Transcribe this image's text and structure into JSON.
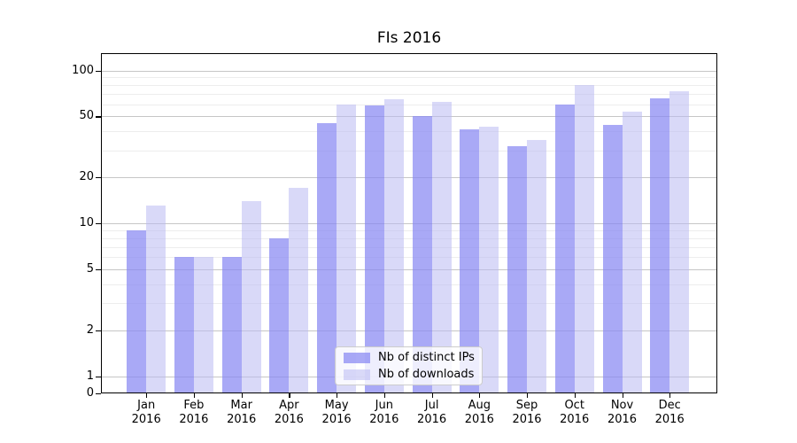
{
  "window": {
    "title": "FIs 2016"
  },
  "chart_data": {
    "type": "bar",
    "title": "FIs 2016",
    "months": [
      "Jan",
      "Feb",
      "Mar",
      "Apr",
      "May",
      "Jun",
      "Jul",
      "Aug",
      "Sep",
      "Oct",
      "Nov",
      "Dec"
    ],
    "year": "2016",
    "series": [
      {
        "name": "Nb of distinct IPs",
        "values": [
          9,
          6,
          6,
          8,
          45,
          59,
          50,
          41,
          32,
          60,
          44,
          66
        ],
        "color": "#a9a9f4",
        "color_rgba": "rgba(136,136,242,0.72)"
      },
      {
        "name": "Nb of downloads",
        "values": [
          13,
          6,
          14,
          17,
          60,
          65,
          62,
          43,
          35,
          80,
          54,
          73
        ],
        "color": "#d9d9f8",
        "color_rgba": "rgba(186,186,243,0.55)"
      }
    ],
    "yscale": "symlog",
    "ylim": [
      0,
      115
    ],
    "y_major_ticks": [
      0,
      1,
      2,
      5,
      10,
      20,
      50,
      100
    ],
    "y_minor_gridlines": [
      3,
      4,
      6,
      7,
      8,
      9,
      30,
      40,
      60,
      70,
      80,
      90
    ],
    "xlabel": "",
    "ylabel": "",
    "grid": true,
    "legend_position": "lower center"
  },
  "colors": {
    "background": "#ffffff",
    "axis": "#000000",
    "major_grid": "#c6c6c6",
    "minor_grid": "#ededed",
    "legend_border": "#cccccc",
    "legend_background": "rgba(255,255,255,0.8)"
  }
}
